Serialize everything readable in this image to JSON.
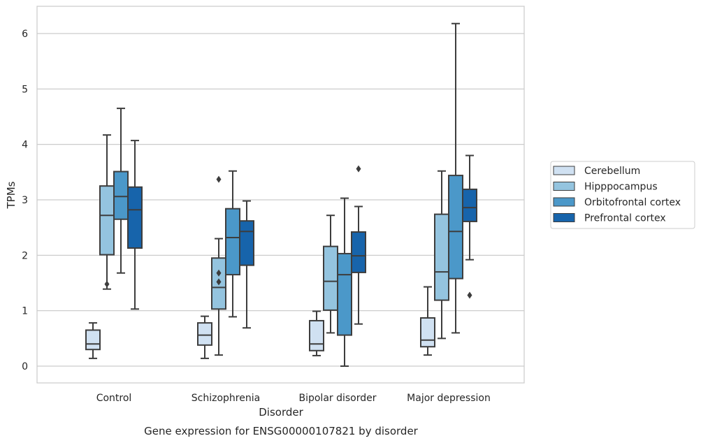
{
  "chart_data": {
    "type": "boxplot",
    "xlabel": "Disorder",
    "ylabel": "TPMs",
    "caption": "Gene expression for ENSG00000107821 by disorder",
    "ylim": [
      -0.3,
      6.5
    ],
    "yticks": [
      0,
      1,
      2,
      3,
      4,
      5,
      6
    ],
    "grid": "horizontal",
    "legend_position": "right",
    "categories": [
      "Control",
      "Schizophrenia",
      "Bipolar disorder",
      "Major depression"
    ],
    "series": [
      {
        "name": "Cerebellum",
        "color": "#d0e1f2",
        "boxes": [
          {
            "whislo": 0.14,
            "q1": 0.3,
            "med": 0.4,
            "q3": 0.65,
            "whishi": 0.78,
            "fliers": []
          },
          {
            "whislo": 0.14,
            "q1": 0.38,
            "med": 0.56,
            "q3": 0.78,
            "whishi": 0.9,
            "fliers": []
          },
          {
            "whislo": 0.19,
            "q1": 0.28,
            "med": 0.4,
            "q3": 0.82,
            "whishi": 0.99,
            "fliers": []
          },
          {
            "whislo": 0.2,
            "q1": 0.35,
            "med": 0.47,
            "q3": 0.87,
            "whishi": 1.43,
            "fliers": []
          }
        ]
      },
      {
        "name": "Hipppocampus",
        "color": "#94c4df",
        "boxes": [
          {
            "whislo": 1.39,
            "q1": 2.01,
            "med": 2.72,
            "q3": 3.25,
            "whishi": 4.17,
            "fliers": [
              1.48
            ]
          },
          {
            "whislo": 0.2,
            "q1": 1.03,
            "med": 1.42,
            "q3": 1.95,
            "whishi": 2.3,
            "fliers": [
              1.52,
              1.68,
              3.37
            ]
          },
          {
            "whislo": 0.6,
            "q1": 1.01,
            "med": 1.53,
            "q3": 2.16,
            "whishi": 2.72,
            "fliers": []
          },
          {
            "whislo": 0.5,
            "q1": 1.19,
            "med": 1.7,
            "q3": 2.74,
            "whishi": 3.52,
            "fliers": []
          }
        ]
      },
      {
        "name": "Orbitofrontal cortex",
        "color": "#4b98c9",
        "boxes": [
          {
            "whislo": 1.68,
            "q1": 2.65,
            "med": 3.06,
            "q3": 3.51,
            "whishi": 4.65,
            "fliers": []
          },
          {
            "whislo": 0.89,
            "q1": 1.65,
            "med": 2.32,
            "q3": 2.84,
            "whishi": 3.52,
            "fliers": []
          },
          {
            "whislo": 0.0,
            "q1": 0.56,
            "med": 1.65,
            "q3": 2.03,
            "whishi": 3.03,
            "fliers": []
          },
          {
            "whislo": 0.6,
            "q1": 1.58,
            "med": 2.43,
            "q3": 3.44,
            "whishi": 6.18,
            "fliers": []
          }
        ]
      },
      {
        "name": "Prefrontal cortex",
        "color": "#1764ab",
        "boxes": [
          {
            "whislo": 1.03,
            "q1": 2.13,
            "med": 2.82,
            "q3": 3.23,
            "whishi": 4.07,
            "fliers": []
          },
          {
            "whislo": 0.69,
            "q1": 1.82,
            "med": 2.43,
            "q3": 2.62,
            "whishi": 2.98,
            "fliers": []
          },
          {
            "whislo": 0.76,
            "q1": 1.69,
            "med": 1.99,
            "q3": 2.42,
            "whishi": 2.88,
            "fliers": [
              3.56
            ]
          },
          {
            "whislo": 1.92,
            "q1": 2.61,
            "med": 2.86,
            "q3": 3.19,
            "whishi": 3.8,
            "fliers": [
              1.28
            ]
          }
        ]
      }
    ]
  }
}
